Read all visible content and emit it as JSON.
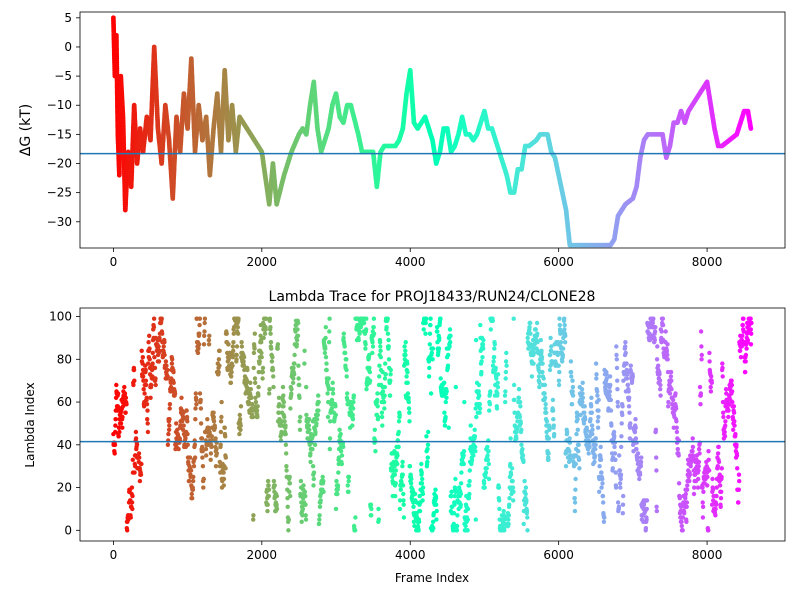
{
  "figure": {
    "background": "#ffffff"
  },
  "chart_data": [
    {
      "type": "scatter",
      "title": "",
      "xlabel": "",
      "ylabel": "ΔG (kT)",
      "xlim": [
        -450,
        9050
      ],
      "ylim": [
        -34.5,
        6
      ],
      "xticks": [
        0,
        2000,
        4000,
        6000,
        8000
      ],
      "xtick_labels": [
        "0",
        "2000",
        "4000",
        "6000",
        "8000"
      ],
      "yticks": [
        5,
        0,
        -5,
        -10,
        -15,
        -20,
        -25,
        -30
      ],
      "ytick_labels": [
        "5",
        "0",
        "−5",
        "−10",
        "−15",
        "−20",
        "−25",
        "−30"
      ],
      "hline": {
        "y": -18.3,
        "color": "#1f77b4"
      },
      "colormap": "rainbow (reversed: early frames red, late frames violet)",
      "grid": false,
      "legend": "none",
      "trace": [
        [
          0,
          5
        ],
        [
          20,
          -5
        ],
        [
          40,
          2
        ],
        [
          60,
          -15
        ],
        [
          80,
          -22
        ],
        [
          100,
          -5
        ],
        [
          130,
          -12
        ],
        [
          160,
          -28
        ],
        [
          200,
          -18
        ],
        [
          240,
          -24
        ],
        [
          280,
          -10
        ],
        [
          320,
          -20
        ],
        [
          360,
          -14
        ],
        [
          400,
          -18
        ],
        [
          450,
          -12
        ],
        [
          500,
          -16
        ],
        [
          550,
          0
        ],
        [
          600,
          -14
        ],
        [
          650,
          -20
        ],
        [
          700,
          -10
        ],
        [
          750,
          -16
        ],
        [
          800,
          -26
        ],
        [
          850,
          -12
        ],
        [
          900,
          -18
        ],
        [
          950,
          -8
        ],
        [
          1000,
          -14
        ],
        [
          1050,
          -2
        ],
        [
          1100,
          -18
        ],
        [
          1150,
          -10
        ],
        [
          1200,
          -16
        ],
        [
          1250,
          -12
        ],
        [
          1300,
          -22
        ],
        [
          1350,
          -14
        ],
        [
          1400,
          -8
        ],
        [
          1450,
          -18
        ],
        [
          1500,
          -4
        ],
        [
          1550,
          -16
        ],
        [
          1600,
          -10
        ],
        [
          1650,
          -18
        ],
        [
          1700,
          -12
        ],
        [
          1800,
          -14
        ],
        [
          1900,
          -16
        ],
        [
          2000,
          -18
        ],
        [
          2100,
          -27
        ],
        [
          2150,
          -20
        ],
        [
          2200,
          -27
        ],
        [
          2300,
          -22
        ],
        [
          2400,
          -18
        ],
        [
          2500,
          -15
        ],
        [
          2550,
          -14
        ],
        [
          2600,
          -15
        ],
        [
          2650,
          -10
        ],
        [
          2700,
          -6
        ],
        [
          2750,
          -14
        ],
        [
          2800,
          -18
        ],
        [
          2850,
          -16
        ],
        [
          2900,
          -14
        ],
        [
          2950,
          -10
        ],
        [
          3000,
          -8
        ],
        [
          3050,
          -12
        ],
        [
          3100,
          -13
        ],
        [
          3150,
          -10
        ],
        [
          3200,
          -10
        ],
        [
          3300,
          -15
        ],
        [
          3350,
          -18
        ],
        [
          3400,
          -18
        ],
        [
          3500,
          -18
        ],
        [
          3550,
          -24
        ],
        [
          3600,
          -18
        ],
        [
          3650,
          -17
        ],
        [
          3700,
          -17
        ],
        [
          3800,
          -17
        ],
        [
          3850,
          -16
        ],
        [
          3900,
          -14
        ],
        [
          3950,
          -8
        ],
        [
          4000,
          -4
        ],
        [
          4050,
          -13
        ],
        [
          4100,
          -14
        ],
        [
          4150,
          -13
        ],
        [
          4200,
          -12
        ],
        [
          4250,
          -14
        ],
        [
          4300,
          -16
        ],
        [
          4350,
          -20
        ],
        [
          4400,
          -18
        ],
        [
          4450,
          -14
        ],
        [
          4500,
          -14
        ],
        [
          4550,
          -18
        ],
        [
          4600,
          -17
        ],
        [
          4650,
          -15
        ],
        [
          4700,
          -12
        ],
        [
          4750,
          -15
        ],
        [
          4800,
          -15
        ],
        [
          4850,
          -16
        ],
        [
          4900,
          -15
        ],
        [
          4950,
          -13
        ],
        [
          5000,
          -11
        ],
        [
          5050,
          -14
        ],
        [
          5100,
          -14
        ],
        [
          5200,
          -18
        ],
        [
          5300,
          -22
        ],
        [
          5350,
          -25
        ],
        [
          5400,
          -25
        ],
        [
          5450,
          -21
        ],
        [
          5500,
          -21
        ],
        [
          5550,
          -17
        ],
        [
          5600,
          -17
        ],
        [
          5700,
          -16
        ],
        [
          5750,
          -15
        ],
        [
          5800,
          -15
        ],
        [
          5850,
          -15
        ],
        [
          5900,
          -18
        ],
        [
          5950,
          -19
        ],
        [
          6000,
          -22
        ],
        [
          6050,
          -25
        ],
        [
          6100,
          -28
        ],
        [
          6150,
          -34
        ],
        [
          6200,
          -34
        ],
        [
          6700,
          -34
        ],
        [
          6750,
          -33
        ],
        [
          6800,
          -29
        ],
        [
          6900,
          -27
        ],
        [
          7000,
          -26
        ],
        [
          7050,
          -24
        ],
        [
          7100,
          -19
        ],
        [
          7150,
          -16
        ],
        [
          7200,
          -15
        ],
        [
          7300,
          -15
        ],
        [
          7400,
          -15
        ],
        [
          7450,
          -19
        ],
        [
          7500,
          -17
        ],
        [
          7550,
          -13
        ],
        [
          7600,
          -13
        ],
        [
          7650,
          -11
        ],
        [
          7700,
          -13
        ],
        [
          7750,
          -11
        ],
        [
          7800,
          -10
        ],
        [
          7900,
          -8
        ],
        [
          7950,
          -7
        ],
        [
          8000,
          -6
        ],
        [
          8050,
          -10
        ],
        [
          8100,
          -14
        ],
        [
          8150,
          -17
        ],
        [
          8200,
          -17
        ],
        [
          8300,
          -16
        ],
        [
          8400,
          -15
        ],
        [
          8450,
          -13
        ],
        [
          8500,
          -11
        ],
        [
          8550,
          -11
        ],
        [
          8590,
          -14
        ]
      ]
    },
    {
      "type": "scatter",
      "title": "Lambda Trace for PROJ18433/RUN24/CLONE28",
      "xlabel": "Frame Index",
      "ylabel": "Lambda Index",
      "xlim": [
        -450,
        9050
      ],
      "ylim": [
        -5,
        104
      ],
      "xticks": [
        0,
        2000,
        4000,
        6000,
        8000
      ],
      "xtick_labels": [
        "0",
        "2000",
        "4000",
        "6000",
        "8000"
      ],
      "yticks": [
        0,
        20,
        40,
        60,
        80,
        100
      ],
      "ytick_labels": [
        "0",
        "20",
        "40",
        "60",
        "80",
        "100"
      ],
      "hline": {
        "y": 41.5,
        "color": "#1f77b4"
      },
      "colormap": "rainbow (reversed: early frames red, late frames violet)",
      "value_range": [
        0,
        99
      ],
      "frame_range": [
        0,
        8600
      ],
      "grid": false,
      "legend": "none"
    }
  ]
}
